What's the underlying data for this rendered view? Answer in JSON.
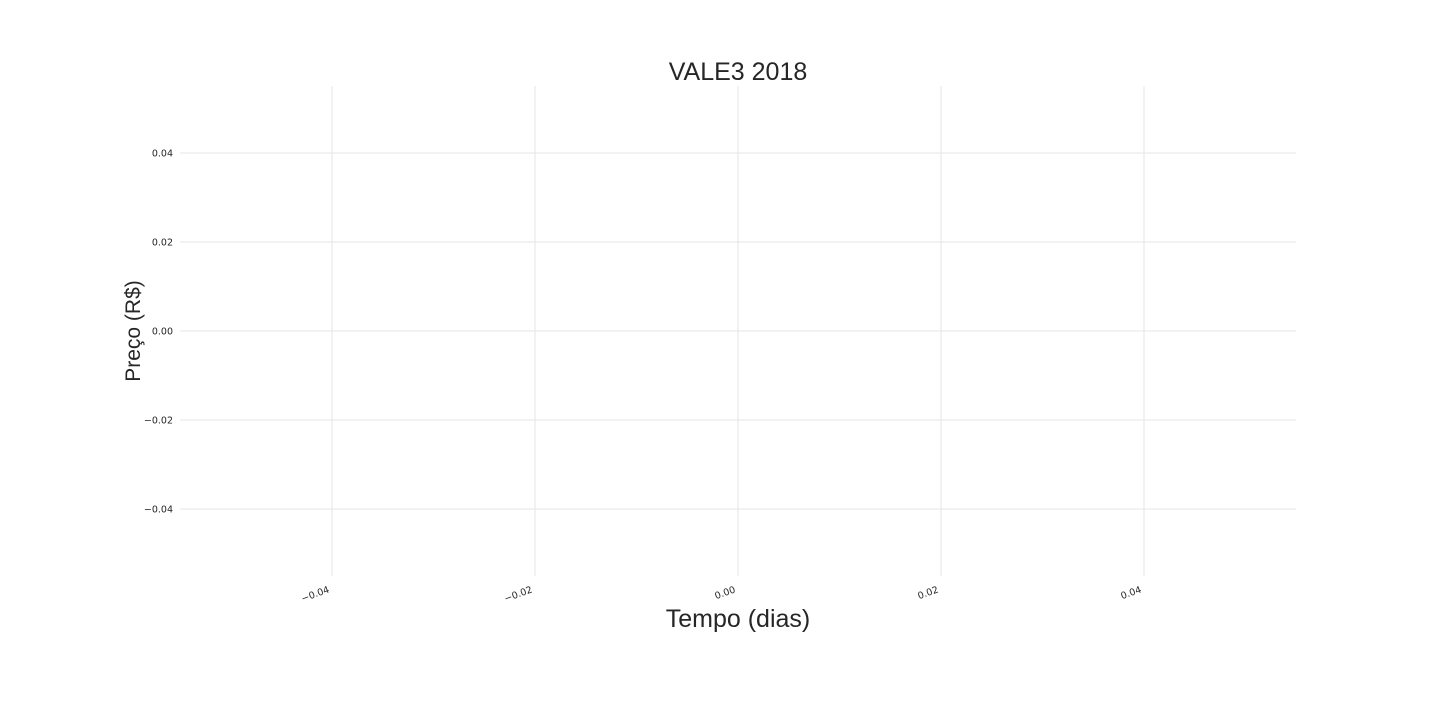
{
  "chart_data": {
    "type": "line",
    "title": "VALE3 2018",
    "xlabel": "Tempo (dias)",
    "ylabel": "Preço (R$)",
    "x_ticks": [
      "−0.04",
      "−0.02",
      "0.00",
      "0.02",
      "0.04"
    ],
    "y_ticks": [
      "0.04",
      "0.02",
      "0.00",
      "−0.02",
      "−0.04"
    ],
    "xlim": [
      -0.055,
      0.055
    ],
    "ylim": [
      -0.055,
      0.055
    ],
    "grid": true,
    "series": []
  }
}
